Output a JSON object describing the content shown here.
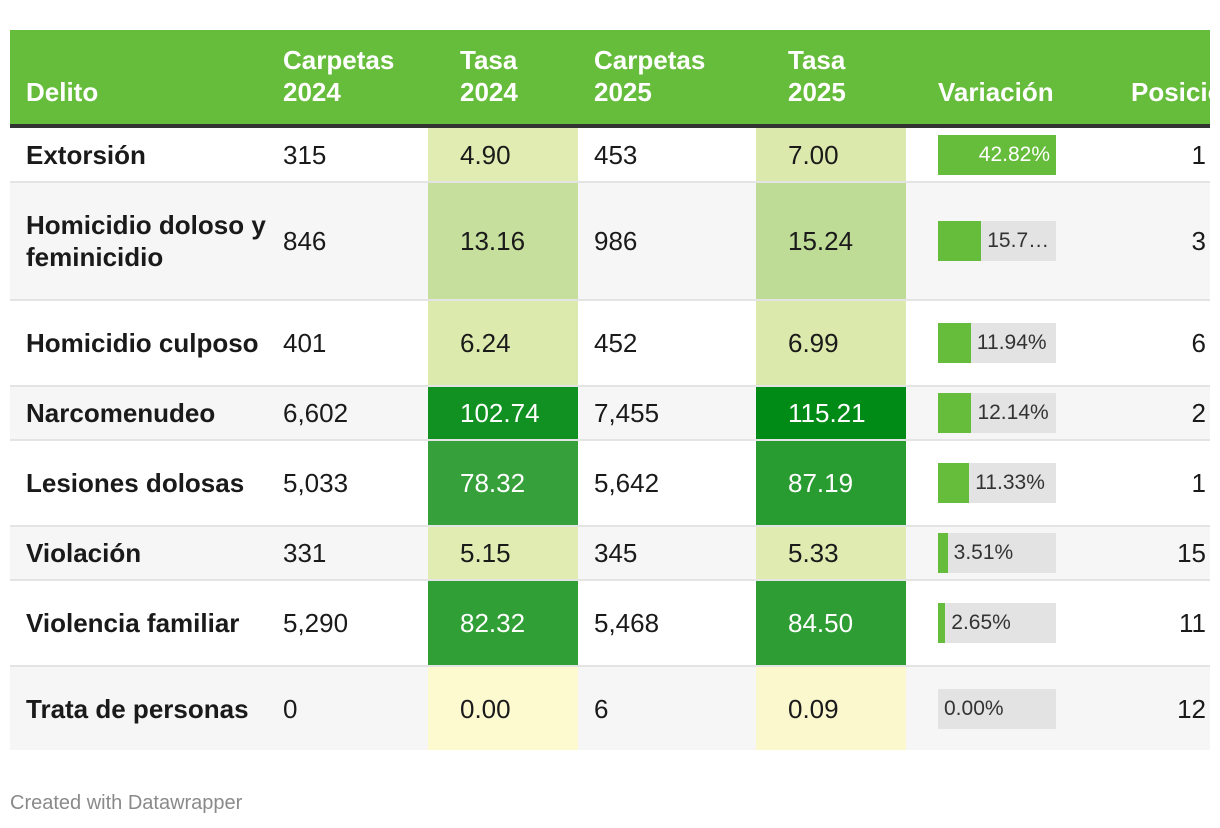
{
  "chart_data": {
    "type": "table",
    "columns": [
      "Delito",
      "Carpetas 2024",
      "Tasa 2024",
      "Carpetas 2025",
      "Tasa 2025",
      "Variación",
      "Posición"
    ],
    "rows": [
      {
        "delito": "Extorsión",
        "carpetas_2024": "315",
        "tasa_2024": "4.90",
        "carpetas_2025": "453",
        "tasa_2025": "7.00",
        "variacion": 42.82,
        "variacion_label": "42.82%",
        "posicion": "1"
      },
      {
        "delito": "Homicidio doloso y feminicidio",
        "carpetas_2024": "846",
        "tasa_2024": "13.16",
        "carpetas_2025": "986",
        "tasa_2025": "15.24",
        "variacion": 15.7,
        "variacion_label": "15.7…",
        "posicion": "3"
      },
      {
        "delito": "Homicidio culposo",
        "carpetas_2024": "401",
        "tasa_2024": "6.24",
        "carpetas_2025": "452",
        "tasa_2025": "6.99",
        "variacion": 11.94,
        "variacion_label": "11.94%",
        "posicion": "6"
      },
      {
        "delito": "Narcomenudeo",
        "carpetas_2024": "6,602",
        "tasa_2024": "102.74",
        "carpetas_2025": "7,455",
        "tasa_2025": "115.21",
        "variacion": 12.14,
        "variacion_label": "12.14%",
        "posicion": "2"
      },
      {
        "delito": "Lesiones dolosas",
        "carpetas_2024": "5,033",
        "tasa_2024": "78.32",
        "carpetas_2025": "5,642",
        "tasa_2025": "87.19",
        "variacion": 11.33,
        "variacion_label": "11.33%",
        "posicion": "1"
      },
      {
        "delito": "Violación",
        "carpetas_2024": "331",
        "tasa_2024": "5.15",
        "carpetas_2025": "345",
        "tasa_2025": "5.33",
        "variacion": 3.51,
        "variacion_label": "3.51%",
        "posicion": "15"
      },
      {
        "delito": "Violencia familiar",
        "carpetas_2024": "5,290",
        "tasa_2024": "82.32",
        "carpetas_2025": "5,468",
        "tasa_2025": "84.50",
        "variacion": 2.65,
        "variacion_label": "2.65%",
        "posicion": "11"
      },
      {
        "delito": "Trata de personas",
        "carpetas_2024": "0",
        "tasa_2024": "0.00",
        "carpetas_2025": "6",
        "tasa_2025": "0.09",
        "variacion": 0.0,
        "variacion_label": "0.00%",
        "posicion": "12"
      }
    ],
    "variacion_range": [
      0,
      42.82
    ],
    "heatmap_range": [
      0,
      115.21
    ]
  },
  "header": {
    "delito": "Delito",
    "carpetas_2024": "Carpetas 2024",
    "tasa_2024": "Tasa 2024",
    "carpetas_2025": "Carpetas 2025",
    "tasa_2025": "Tasa 2025",
    "variacion": "Variación",
    "posicion": "Posición"
  },
  "footer": {
    "credit": "Created with Datawrapper"
  },
  "colors": {
    "header_bg": "#66bc3b",
    "bar": "#66bc3b",
    "bar_track": "#e3e3e3",
    "heat_low": "#fefad0",
    "heat_mid": "#d5e6a6",
    "heat_high": "#008a16"
  }
}
